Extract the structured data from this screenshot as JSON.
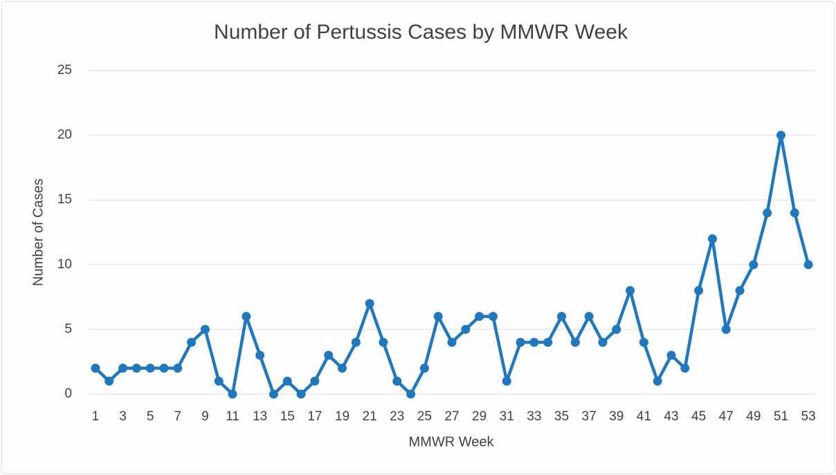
{
  "chart_data": {
    "type": "line",
    "title": "Number of Pertussis Cases by MMWR Week",
    "x_label": "MMWR Week",
    "y_label": "Number of Cases",
    "categories": [
      "1",
      null,
      "3",
      null,
      "5",
      null,
      "7",
      null,
      "9",
      null,
      "11",
      null,
      "13",
      null,
      "15",
      null,
      "17",
      null,
      "19",
      null,
      "21",
      null,
      "23",
      null,
      "25",
      null,
      "27",
      null,
      "29",
      null,
      "31",
      null,
      "33",
      null,
      "35",
      null,
      "37",
      null,
      "39",
      null,
      "41",
      null,
      "43",
      null,
      "45",
      null,
      "47",
      null,
      "49",
      null,
      "51",
      null,
      "53"
    ],
    "values": [
      2,
      1,
      2,
      2,
      2,
      2,
      2,
      4,
      5,
      1,
      0,
      6,
      3,
      0,
      1,
      0,
      1,
      3,
      2,
      4,
      7,
      4,
      1,
      0,
      2,
      6,
      4,
      5,
      6,
      6,
      1,
      4,
      4,
      4,
      6,
      4,
      6,
      4,
      5,
      8,
      4,
      1,
      3,
      2,
      8,
      12,
      5,
      8,
      10,
      14,
      20,
      14,
      10
    ],
    "color": "#1f78bd",
    "ylim": [
      0,
      25
    ],
    "yticks": [
      0,
      5,
      10,
      15,
      20,
      25
    ],
    "grid": true
  }
}
